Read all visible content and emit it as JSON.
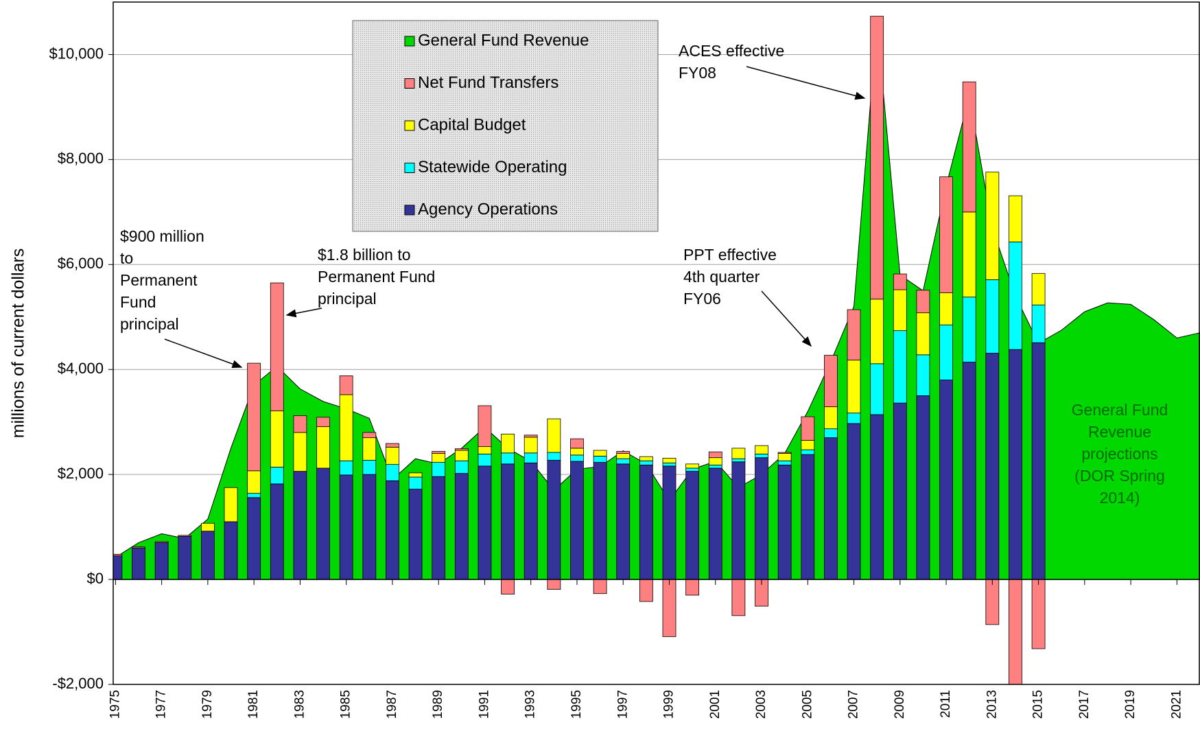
{
  "chart_data": {
    "type": "bar",
    "y_label": "millions of current dollars",
    "ylim": [
      -2000,
      11000
    ],
    "yticks": [
      {
        "value": -2000,
        "label": "-$2,000"
      },
      {
        "value": 0,
        "label": "$0"
      },
      {
        "value": 2000,
        "label": "$2,000"
      },
      {
        "value": 4000,
        "label": "$4,000"
      },
      {
        "value": 6000,
        "label": "$6,000"
      },
      {
        "value": 8000,
        "label": "$8,000"
      },
      {
        "value": 10000,
        "label": "$10,000"
      }
    ],
    "xlim": [
      1974.9,
      2022
    ],
    "xticks": [
      1975,
      1977,
      1979,
      1981,
      1983,
      1985,
      1987,
      1989,
      1991,
      1993,
      1995,
      1997,
      1999,
      2001,
      2003,
      2005,
      2007,
      2009,
      2011,
      2013,
      2015,
      2017,
      2019,
      2021
    ],
    "grid": true,
    "area": {
      "name": "General Fund Revenue",
      "color": "#00d800",
      "x": [
        1975,
        1976,
        1977,
        1978,
        1979,
        1980,
        1981,
        1982,
        1983,
        1984,
        1985,
        1986,
        1987,
        1988,
        1989,
        1990,
        1991,
        1992,
        1993,
        1994,
        1995,
        1996,
        1997,
        1998,
        1999,
        2000,
        2001,
        2002,
        2003,
        2004,
        2005,
        2006,
        2007,
        2008,
        2009,
        2010,
        2011,
        2012,
        2013,
        2014,
        2015,
        2016,
        2017,
        2018,
        2019,
        2020,
        2021,
        2022
      ],
      "values": [
        420,
        700,
        870,
        780,
        1150,
        2500,
        3700,
        4060,
        3630,
        3390,
        3250,
        3070,
        1900,
        2300,
        2200,
        2500,
        2900,
        2500,
        2250,
        1700,
        2100,
        2150,
        2450,
        2200,
        1500,
        2100,
        2250,
        1750,
        2000,
        2400,
        3200,
        4150,
        5200,
        10600,
        5800,
        5500,
        7500,
        9200,
        6700,
        5400,
        4500,
        4750,
        5100,
        5270,
        5240,
        4950,
        4600,
        4700
      ]
    },
    "x": [
      1975,
      1976,
      1977,
      1978,
      1979,
      1980,
      1981,
      1982,
      1983,
      1984,
      1985,
      1986,
      1987,
      1988,
      1989,
      1990,
      1991,
      1992,
      1993,
      1994,
      1995,
      1996,
      1997,
      1998,
      1999,
      2000,
      2001,
      2002,
      2003,
      2004,
      2005,
      2006,
      2007,
      2008,
      2009,
      2010,
      2011,
      2012,
      2013,
      2014,
      2015
    ],
    "series": [
      {
        "name": "Agency Operations",
        "color": "#333399",
        "values": [
          450,
          600,
          700,
          820,
          920,
          1100,
          1560,
          1820,
          2060,
          2120,
          1990,
          2000,
          1880,
          1720,
          1960,
          2020,
          2160,
          2200,
          2220,
          2270,
          2250,
          2230,
          2200,
          2180,
          2160,
          2060,
          2120,
          2240,
          2320,
          2180,
          2380,
          2700,
          2970,
          3140,
          3360,
          3500,
          3800,
          4140,
          4310,
          4380,
          4510
        ]
      },
      {
        "name": "Statewide Operating",
        "color": "#00ffff",
        "values": [
          0,
          0,
          0,
          0,
          0,
          0,
          80,
          320,
          0,
          0,
          270,
          270,
          310,
          230,
          270,
          240,
          230,
          210,
          190,
          150,
          120,
          120,
          100,
          80,
          60,
          60,
          60,
          60,
          70,
          80,
          90,
          170,
          200,
          970,
          1380,
          780,
          1050,
          1240,
          1400,
          2050,
          720
        ]
      },
      {
        "name": "Capital Budget",
        "color": "#ffff00",
        "values": [
          0,
          0,
          0,
          0,
          150,
          650,
          430,
          1070,
          740,
          790,
          1260,
          430,
          330,
          80,
          170,
          200,
          140,
          360,
          300,
          640,
          130,
          110,
          100,
          80,
          90,
          80,
          140,
          200,
          160,
          140,
          180,
          420,
          1010,
          1230,
          780,
          800,
          610,
          1620,
          2050,
          880,
          600
        ]
      },
      {
        "name": "Net Fund Transfers",
        "color": "#ff8080",
        "values": [
          30,
          20,
          20,
          20,
          0,
          0,
          2050,
          2440,
          320,
          180,
          360,
          100,
          70,
          0,
          40,
          30,
          780,
          -280,
          40,
          -190,
          180,
          -270,
          40,
          -420,
          -1090,
          -300,
          110,
          -690,
          -510,
          20,
          450,
          980,
          960,
          5390,
          300,
          430,
          2210,
          2480,
          -860,
          -2000,
          -1320
        ]
      }
    ],
    "annotations": [
      {
        "lines": [
          "$900 million",
          "to",
          "Permanent",
          "Fund",
          "principal"
        ]
      },
      {
        "lines": [
          "$1.8 billion to",
          "Permanent Fund",
          "principal"
        ]
      },
      {
        "lines": [
          "ACES effective",
          "FY08"
        ]
      },
      {
        "lines": [
          "PPT effective",
          "4th quarter",
          "FY06"
        ]
      },
      {
        "lines": [
          "General Fund",
          "Revenue",
          "projections",
          "(DOR Spring",
          "2014)"
        ]
      }
    ]
  }
}
